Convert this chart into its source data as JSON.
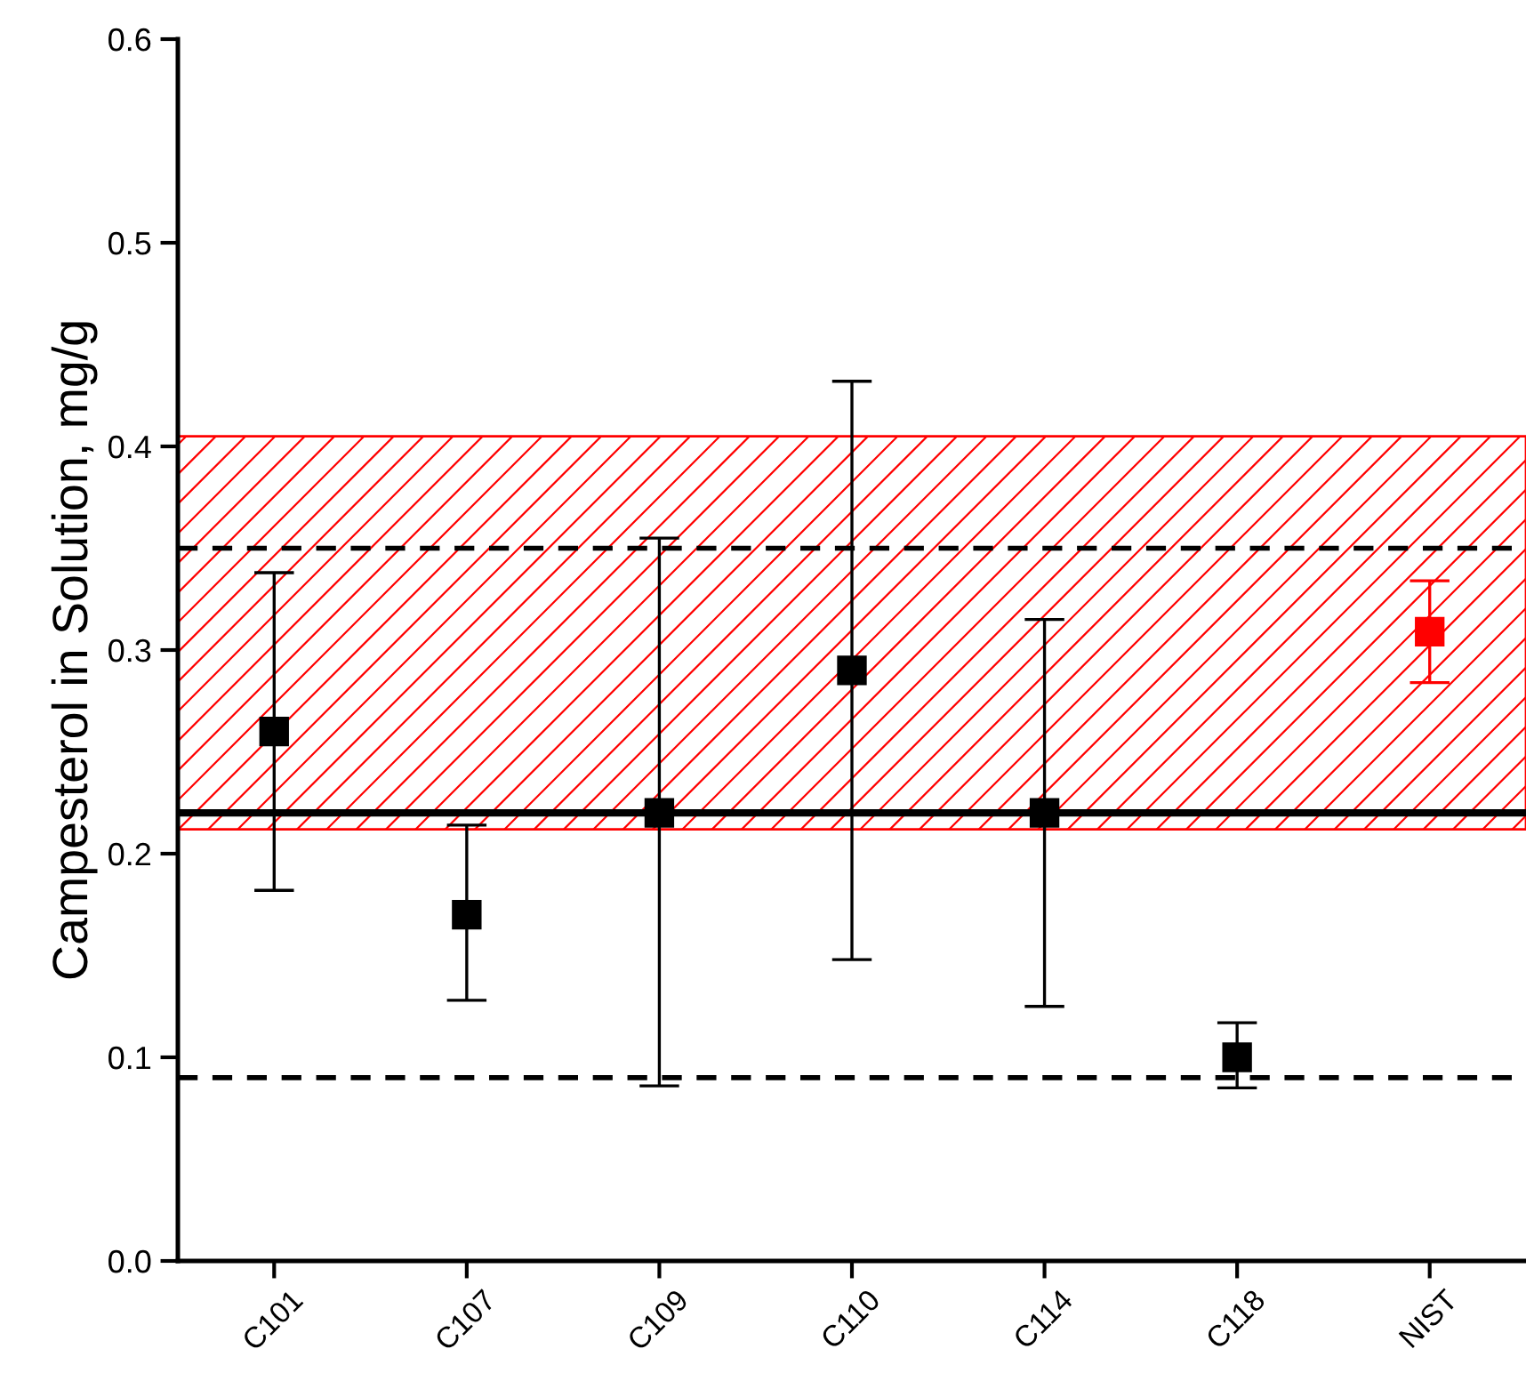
{
  "chart_data": {
    "type": "scatter",
    "ylabel": "Campesterol in Solution, mg/g",
    "categories": [
      "C101",
      "C107",
      "C109",
      "C110",
      "C114",
      "C118",
      "NIST"
    ],
    "values": [
      0.26,
      0.17,
      0.22,
      0.29,
      0.22,
      0.1,
      0.309
    ],
    "errors": [
      [
        0.182,
        0.338
      ],
      [
        0.128,
        0.214
      ],
      [
        0.086,
        0.355
      ],
      [
        0.148,
        0.432
      ],
      [
        0.125,
        0.315
      ],
      [
        0.085,
        0.117
      ],
      [
        0.284,
        0.334
      ]
    ],
    "colors": [
      "#000000",
      "#000000",
      "#000000",
      "#000000",
      "#000000",
      "#000000",
      "#ff0000"
    ],
    "ylim": [
      0.0,
      0.6
    ],
    "yticks": [
      {
        "value": 0.0,
        "label": "0.0"
      },
      {
        "value": 0.1,
        "label": "0.1"
      },
      {
        "value": 0.2,
        "label": "0.2"
      },
      {
        "value": 0.3,
        "label": "0.3"
      },
      {
        "value": 0.4,
        "label": "0.4"
      },
      {
        "value": 0.5,
        "label": "0.5"
      },
      {
        "value": 0.6,
        "label": "0.6"
      }
    ],
    "bands": [
      {
        "axis": "y",
        "from": 0.212,
        "to": 0.405,
        "color": "#ff0000"
      }
    ],
    "ref_lines": [
      {
        "axis": "y",
        "value": 0.22,
        "color": "#000000",
        "line_style": "solid"
      },
      {
        "axis": "y",
        "value": 0.35,
        "color": "#000000",
        "line_style": "dashed"
      },
      {
        "axis": "y",
        "value": 0.09,
        "color": "#000000",
        "line_style": "dashed"
      }
    ],
    "marker": "square",
    "grid": false,
    "legend": false
  }
}
